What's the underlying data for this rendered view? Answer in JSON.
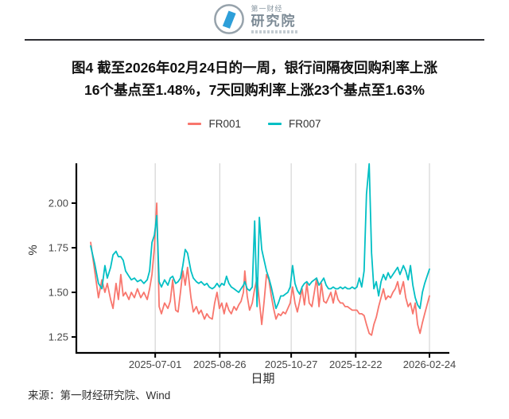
{
  "logo": {
    "line1": "第一财经",
    "line2": "研究院",
    "ring_color": "#96a2ab",
    "mark_color": "#2d9fd9"
  },
  "source": {
    "label": "来源：第一财经研究院、Wind"
  },
  "chart_data": {
    "type": "line",
    "title": "图4 截至2026年02月24日的一周，银行间隔夜回购利率上涨16个基点至1.48%，7天回购利率上涨23个基点至1.63%",
    "title_lines": {
      "line1": "图4  截至2026年02月24日的一周，银行间隔夜回购利率上涨",
      "line2": "16个基点至1.48%，7天回购利率上涨23个基点至1.63%"
    },
    "x_axis": {
      "label": "日期",
      "start": "2025-05-06",
      "end": "2026-02-24",
      "ticks": [
        "2025-07-01",
        "2025-08-26",
        "2025-10-27",
        "2025-12-22",
        "2026-02-24"
      ]
    },
    "y_axis": {
      "label": "%",
      "ticks": [
        1.25,
        1.5,
        1.75,
        2.0
      ],
      "range": [
        1.25,
        2.22
      ]
    },
    "grid": "vertical-only",
    "grid_color": "#cccccc",
    "legend": {
      "position": "top-center",
      "entries": [
        {
          "name": "FR001",
          "color": "#F8766D"
        },
        {
          "name": "FR007",
          "color": "#00BFC4"
        }
      ]
    },
    "key_points": {
      "FR001_latest_pct": 1.48,
      "FR007_latest_pct": 1.63,
      "FR001_peak": {
        "value": 2.0,
        "near": "2025-07-01"
      },
      "FR007_peaks": [
        {
          "value": 1.93,
          "near": "2025-07-01"
        },
        {
          "value": 1.92,
          "near": "2025-09-30"
        },
        {
          "value": 2.22,
          "near": "2025-12-31"
        }
      ],
      "FR001_low": {
        "value": 1.26,
        "near": "2026-01-01"
      }
    },
    "series": [
      {
        "name": "FR001",
        "color": "#F8766D",
        "points": [
          [
            0,
            1.78
          ],
          [
            0.012,
            1.62
          ],
          [
            0.023,
            1.47
          ],
          [
            0.033,
            1.57
          ],
          [
            0.042,
            1.5
          ],
          [
            0.049,
            1.55
          ],
          [
            0.059,
            1.46
          ],
          [
            0.066,
            1.41
          ],
          [
            0.075,
            1.55
          ],
          [
            0.082,
            1.46
          ],
          [
            0.089,
            1.6
          ],
          [
            0.096,
            1.48
          ],
          [
            0.103,
            1.5
          ],
          [
            0.113,
            1.46
          ],
          [
            0.12,
            1.5
          ],
          [
            0.129,
            1.47
          ],
          [
            0.138,
            1.52
          ],
          [
            0.148,
            1.47
          ],
          [
            0.157,
            1.5
          ],
          [
            0.167,
            1.46
          ],
          [
            0.174,
            1.52
          ],
          [
            0.181,
            1.6
          ],
          [
            0.188,
            1.75
          ],
          [
            0.195,
            2.0
          ],
          [
            0.202,
            1.42
          ],
          [
            0.209,
            1.38
          ],
          [
            0.218,
            1.44
          ],
          [
            0.228,
            1.41
          ],
          [
            0.235,
            1.45
          ],
          [
            0.242,
            1.57
          ],
          [
            0.251,
            1.4
          ],
          [
            0.258,
            1.39
          ],
          [
            0.265,
            1.5
          ],
          [
            0.272,
            1.62
          ],
          [
            0.279,
            1.54
          ],
          [
            0.286,
            1.64
          ],
          [
            0.296,
            1.47
          ],
          [
            0.303,
            1.39
          ],
          [
            0.312,
            1.42
          ],
          [
            0.319,
            1.38
          ],
          [
            0.326,
            1.4
          ],
          [
            0.336,
            1.35
          ],
          [
            0.343,
            1.38
          ],
          [
            0.35,
            1.36
          ],
          [
            0.359,
            1.35
          ],
          [
            0.366,
            1.44
          ],
          [
            0.373,
            1.5
          ],
          [
            0.38,
            1.41
          ],
          [
            0.387,
            1.44
          ],
          [
            0.394,
            1.38
          ],
          [
            0.401,
            1.44
          ],
          [
            0.408,
            1.4
          ],
          [
            0.415,
            1.38
          ],
          [
            0.423,
            1.42
          ],
          [
            0.43,
            1.4
          ],
          [
            0.437,
            1.43
          ],
          [
            0.444,
            1.45
          ],
          [
            0.451,
            1.5
          ],
          [
            0.455,
            1.62
          ],
          [
            0.462,
            1.48
          ],
          [
            0.469,
            1.4
          ],
          [
            0.477,
            1.44
          ],
          [
            0.484,
            1.52
          ],
          [
            0.491,
            1.58
          ],
          [
            0.498,
            1.45
          ],
          [
            0.505,
            1.32
          ],
          [
            0.512,
            1.45
          ],
          [
            0.519,
            1.6
          ],
          [
            0.526,
            1.57
          ],
          [
            0.533,
            1.48
          ],
          [
            0.54,
            1.41
          ],
          [
            0.547,
            1.35
          ],
          [
            0.554,
            1.38
          ],
          [
            0.561,
            1.37
          ],
          [
            0.568,
            1.39
          ],
          [
            0.575,
            1.38
          ],
          [
            0.582,
            1.41
          ],
          [
            0.589,
            1.44
          ],
          [
            0.596,
            1.53
          ],
          [
            0.603,
            1.44
          ],
          [
            0.61,
            1.39
          ],
          [
            0.617,
            1.45
          ],
          [
            0.624,
            1.52
          ],
          [
            0.631,
            1.43
          ],
          [
            0.638,
            1.55
          ],
          [
            0.645,
            1.44
          ],
          [
            0.653,
            1.42
          ],
          [
            0.66,
            1.5
          ],
          [
            0.667,
            1.58
          ],
          [
            0.674,
            1.42
          ],
          [
            0.681,
            1.55
          ],
          [
            0.688,
            1.45
          ],
          [
            0.695,
            1.44
          ],
          [
            0.702,
            1.47
          ],
          [
            0.709,
            1.5
          ],
          [
            0.716,
            1.44
          ],
          [
            0.723,
            1.51
          ],
          [
            0.73,
            1.46
          ],
          [
            0.737,
            1.44
          ],
          [
            0.744,
            1.44
          ],
          [
            0.751,
            1.42
          ],
          [
            0.758,
            1.42
          ],
          [
            0.765,
            1.41
          ],
          [
            0.772,
            1.4
          ],
          [
            0.779,
            1.4
          ],
          [
            0.786,
            1.4
          ],
          [
            0.793,
            1.38
          ],
          [
            0.8,
            1.38
          ],
          [
            0.807,
            1.37
          ],
          [
            0.814,
            1.32
          ],
          [
            0.822,
            1.27
          ],
          [
            0.829,
            1.26
          ],
          [
            0.836,
            1.32
          ],
          [
            0.843,
            1.36
          ],
          [
            0.85,
            1.42
          ],
          [
            0.857,
            1.47
          ],
          [
            0.864,
            1.52
          ],
          [
            0.871,
            1.46
          ],
          [
            0.878,
            1.48
          ],
          [
            0.885,
            1.47
          ],
          [
            0.892,
            1.5
          ],
          [
            0.899,
            1.52
          ],
          [
            0.906,
            1.56
          ],
          [
            0.913,
            1.49
          ],
          [
            0.923,
            1.56
          ],
          [
            0.93,
            1.47
          ],
          [
            0.937,
            1.42
          ],
          [
            0.944,
            1.44
          ],
          [
            0.951,
            1.38
          ],
          [
            0.958,
            1.44
          ],
          [
            0.965,
            1.32
          ],
          [
            0.972,
            1.27
          ],
          [
            0.979,
            1.33
          ],
          [
            0.986,
            1.38
          ],
          [
            0.993,
            1.43
          ],
          [
            1,
            1.48
          ]
        ]
      },
      {
        "name": "FR007",
        "color": "#00BFC4",
        "points": [
          [
            0,
            1.76
          ],
          [
            0.012,
            1.66
          ],
          [
            0.023,
            1.55
          ],
          [
            0.033,
            1.52
          ],
          [
            0.042,
            1.65
          ],
          [
            0.049,
            1.58
          ],
          [
            0.059,
            1.64
          ],
          [
            0.066,
            1.71
          ],
          [
            0.075,
            1.73
          ],
          [
            0.082,
            1.7
          ],
          [
            0.089,
            1.7
          ],
          [
            0.096,
            1.68
          ],
          [
            0.103,
            1.62
          ],
          [
            0.113,
            1.59
          ],
          [
            0.12,
            1.57
          ],
          [
            0.129,
            1.58
          ],
          [
            0.138,
            1.56
          ],
          [
            0.148,
            1.57
          ],
          [
            0.157,
            1.55
          ],
          [
            0.167,
            1.57
          ],
          [
            0.174,
            1.62
          ],
          [
            0.181,
            1.78
          ],
          [
            0.188,
            1.82
          ],
          [
            0.195,
            1.93
          ],
          [
            0.202,
            1.56
          ],
          [
            0.209,
            1.53
          ],
          [
            0.218,
            1.57
          ],
          [
            0.228,
            1.54
          ],
          [
            0.235,
            1.58
          ],
          [
            0.242,
            1.59
          ],
          [
            0.251,
            1.55
          ],
          [
            0.258,
            1.56
          ],
          [
            0.265,
            1.58
          ],
          [
            0.272,
            1.65
          ],
          [
            0.279,
            1.74
          ],
          [
            0.286,
            1.72
          ],
          [
            0.296,
            1.62
          ],
          [
            0.303,
            1.58
          ],
          [
            0.312,
            1.56
          ],
          [
            0.319,
            1.55
          ],
          [
            0.326,
            1.56
          ],
          [
            0.336,
            1.54
          ],
          [
            0.343,
            1.55
          ],
          [
            0.35,
            1.53
          ],
          [
            0.359,
            1.52
          ],
          [
            0.366,
            1.53
          ],
          [
            0.373,
            1.55
          ],
          [
            0.38,
            1.53
          ],
          [
            0.387,
            1.55
          ],
          [
            0.394,
            1.54
          ],
          [
            0.401,
            1.59
          ],
          [
            0.408,
            1.55
          ],
          [
            0.415,
            1.53
          ],
          [
            0.423,
            1.52
          ],
          [
            0.43,
            1.51
          ],
          [
            0.437,
            1.5
          ],
          [
            0.444,
            1.52
          ],
          [
            0.451,
            1.54
          ],
          [
            0.455,
            1.56
          ],
          [
            0.462,
            1.52
          ],
          [
            0.469,
            1.51
          ],
          [
            0.477,
            1.53
          ],
          [
            0.484,
            1.9
          ],
          [
            0.491,
            1.42
          ],
          [
            0.498,
            1.92
          ],
          [
            0.505,
            1.74
          ],
          [
            0.512,
            1.68
          ],
          [
            0.519,
            1.62
          ],
          [
            0.526,
            1.58
          ],
          [
            0.533,
            1.53
          ],
          [
            0.54,
            1.47
          ],
          [
            0.547,
            1.41
          ],
          [
            0.554,
            1.44
          ],
          [
            0.561,
            1.48
          ],
          [
            0.568,
            1.48
          ],
          [
            0.575,
            1.49
          ],
          [
            0.582,
            1.5
          ],
          [
            0.589,
            1.53
          ],
          [
            0.596,
            1.65
          ],
          [
            0.603,
            1.55
          ],
          [
            0.61,
            1.51
          ],
          [
            0.617,
            1.49
          ],
          [
            0.624,
            1.53
          ],
          [
            0.631,
            1.55
          ],
          [
            0.638,
            1.56
          ],
          [
            0.645,
            1.54
          ],
          [
            0.653,
            1.56
          ],
          [
            0.66,
            1.57
          ],
          [
            0.667,
            1.58
          ],
          [
            0.674,
            1.54
          ],
          [
            0.681,
            1.56
          ],
          [
            0.688,
            1.58
          ],
          [
            0.695,
            1.54
          ],
          [
            0.702,
            1.52
          ],
          [
            0.709,
            1.52
          ],
          [
            0.716,
            1.53
          ],
          [
            0.723,
            1.52
          ],
          [
            0.73,
            1.52
          ],
          [
            0.737,
            1.53
          ],
          [
            0.744,
            1.52
          ],
          [
            0.751,
            1.53
          ],
          [
            0.758,
            1.52
          ],
          [
            0.765,
            1.52
          ],
          [
            0.772,
            1.53
          ],
          [
            0.779,
            1.52
          ],
          [
            0.786,
            1.53
          ],
          [
            0.793,
            1.58
          ],
          [
            0.8,
            1.53
          ],
          [
            0.807,
            1.62
          ],
          [
            0.814,
            2.05
          ],
          [
            0.822,
            2.22
          ],
          [
            0.829,
            1.72
          ],
          [
            0.836,
            1.52
          ],
          [
            0.843,
            1.56
          ],
          [
            0.85,
            1.48
          ],
          [
            0.857,
            1.56
          ],
          [
            0.864,
            1.6
          ],
          [
            0.871,
            1.57
          ],
          [
            0.878,
            1.61
          ],
          [
            0.885,
            1.58
          ],
          [
            0.892,
            1.6
          ],
          [
            0.899,
            1.62
          ],
          [
            0.906,
            1.64
          ],
          [
            0.913,
            1.6
          ],
          [
            0.923,
            1.65
          ],
          [
            0.93,
            1.62
          ],
          [
            0.937,
            1.57
          ],
          [
            0.944,
            1.65
          ],
          [
            0.951,
            1.54
          ],
          [
            0.958,
            1.47
          ],
          [
            0.965,
            1.43
          ],
          [
            0.972,
            1.41
          ],
          [
            0.979,
            1.5
          ],
          [
            0.986,
            1.55
          ],
          [
            0.993,
            1.59
          ],
          [
            1,
            1.63
          ]
        ]
      }
    ]
  }
}
